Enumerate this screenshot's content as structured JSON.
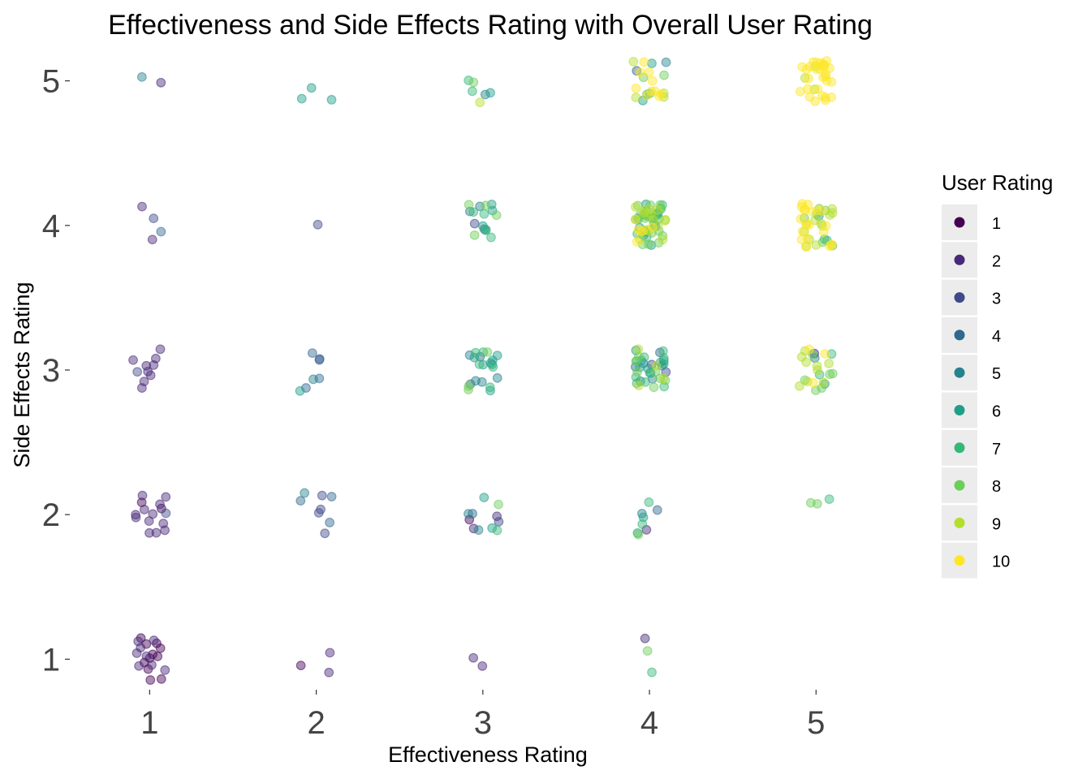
{
  "chart_data": {
    "type": "scatter",
    "title": "Effectiveness and Side Effects Rating with Overall User Rating",
    "xlabel": "Effectiveness Rating",
    "ylabel": "Side Effects Rating",
    "x_ticks": [
      "1",
      "2",
      "3",
      "4",
      "5"
    ],
    "y_ticks": [
      "1",
      "2",
      "3",
      "4",
      "5"
    ],
    "xlim": [
      0.55,
      5.52
    ],
    "ylim": [
      0.8,
      5.2
    ],
    "grid": false,
    "jitter": true,
    "point_alpha": 0.45,
    "legend": {
      "title": "User Rating",
      "position": "right",
      "levels": [
        "1",
        "2",
        "3",
        "4",
        "5",
        "6",
        "7",
        "8",
        "9",
        "10"
      ],
      "colors": [
        "#440154",
        "#482878",
        "#3E4A89",
        "#31688E",
        "#26828E",
        "#1F9E89",
        "#35B779",
        "#6DCD59",
        "#B4DE2C",
        "#FDE725"
      ]
    },
    "series": [
      {
        "x": 1,
        "y": 1,
        "ratings": [
          1,
          1,
          1,
          1,
          1,
          1,
          1,
          1,
          1,
          1,
          1,
          2,
          2,
          2,
          2,
          2,
          2,
          2,
          2
        ]
      },
      {
        "x": 1,
        "y": 2,
        "ratings": [
          1,
          1,
          2,
          2,
          2,
          2,
          2,
          2,
          2,
          2,
          2,
          2,
          2,
          2,
          3
        ]
      },
      {
        "x": 1,
        "y": 3,
        "ratings": [
          2,
          2,
          2,
          2,
          2,
          2,
          2,
          2,
          2,
          3
        ]
      },
      {
        "x": 1,
        "y": 4,
        "ratings": [
          2,
          2,
          3,
          4
        ]
      },
      {
        "x": 1,
        "y": 5,
        "ratings": [
          2,
          5
        ]
      },
      {
        "x": 2,
        "y": 1,
        "ratings": [
          1,
          2,
          2
        ]
      },
      {
        "x": 2,
        "y": 2,
        "ratings": [
          3,
          3,
          3,
          3,
          4,
          4,
          4,
          5
        ]
      },
      {
        "x": 2,
        "y": 3,
        "ratings": [
          3,
          4,
          4,
          4,
          4,
          5,
          6
        ]
      },
      {
        "x": 2,
        "y": 4,
        "ratings": [
          3
        ]
      },
      {
        "x": 2,
        "y": 5,
        "ratings": [
          6,
          6,
          6
        ]
      },
      {
        "x": 3,
        "y": 1,
        "ratings": [
          2,
          2
        ]
      },
      {
        "x": 3,
        "y": 2,
        "ratings": [
          1,
          2,
          2,
          3,
          4,
          5,
          5,
          6,
          6,
          7,
          8
        ]
      },
      {
        "x": 3,
        "y": 3,
        "ratings": [
          4,
          4,
          5,
          5,
          5,
          5,
          6,
          6,
          6,
          6,
          6,
          6,
          6,
          7,
          7,
          7,
          7,
          7,
          8,
          8,
          8
        ]
      },
      {
        "x": 3,
        "y": 4,
        "ratings": [
          3,
          4,
          5,
          5,
          6,
          6,
          6,
          6,
          7,
          7,
          7,
          7,
          8,
          8,
          8,
          8
        ]
      },
      {
        "x": 3,
        "y": 5,
        "ratings": [
          5,
          6,
          7,
          7,
          8,
          9
        ]
      },
      {
        "x": 4,
        "y": 1,
        "ratings": [
          2,
          7,
          8
        ]
      },
      {
        "x": 4,
        "y": 2,
        "ratings": [
          2,
          4,
          5,
          6,
          6,
          7,
          7,
          8
        ]
      },
      {
        "x": 4,
        "y": 3,
        "ratings": [
          3,
          3,
          4,
          4,
          5,
          5,
          5,
          5,
          6,
          6,
          6,
          6,
          6,
          6,
          6,
          6,
          7,
          7,
          7,
          7,
          7,
          7,
          7,
          7,
          7,
          8,
          8,
          8,
          8,
          8,
          8,
          8,
          9,
          9,
          9,
          9
        ]
      },
      {
        "x": 4,
        "y": 4,
        "ratings": [
          5,
          5,
          5,
          6,
          6,
          6,
          6,
          6,
          6,
          7,
          7,
          7,
          7,
          7,
          7,
          7,
          7,
          7,
          7,
          7,
          7,
          8,
          8,
          8,
          8,
          8,
          8,
          8,
          8,
          8,
          8,
          8,
          8,
          8,
          8,
          8,
          8,
          9,
          9,
          9,
          9,
          9,
          9,
          9,
          9,
          9,
          9,
          9,
          9,
          9,
          9,
          10,
          10,
          10,
          10,
          10,
          10
        ]
      },
      {
        "x": 4,
        "y": 5,
        "ratings": [
          4,
          5,
          6,
          6,
          7,
          7,
          8,
          8,
          9,
          9,
          9,
          9,
          10,
          10,
          10,
          10,
          10,
          10,
          10,
          10,
          10,
          10
        ]
      },
      {
        "x": 5,
        "y": 2,
        "ratings": [
          7,
          8,
          8
        ]
      },
      {
        "x": 5,
        "y": 3,
        "ratings": [
          2,
          5,
          6,
          7,
          7,
          8,
          8,
          8,
          8,
          8,
          8,
          9,
          9,
          9,
          9,
          9,
          9,
          9,
          9,
          9,
          10,
          10,
          10
        ]
      },
      {
        "x": 5,
        "y": 4,
        "ratings": [
          6,
          7,
          7,
          7,
          8,
          8,
          8,
          8,
          8,
          9,
          9,
          9,
          9,
          9,
          9,
          9,
          9,
          9,
          9,
          9,
          10,
          10,
          10,
          10,
          10,
          10,
          10,
          10,
          10,
          10,
          10,
          10,
          10,
          10,
          10,
          10,
          10,
          10,
          10,
          10
        ]
      },
      {
        "x": 5,
        "y": 5,
        "ratings": [
          9,
          9,
          9,
          10,
          10,
          10,
          10,
          10,
          10,
          10,
          10,
          10,
          10,
          10,
          10,
          10,
          10,
          10,
          10,
          10,
          10,
          10,
          10,
          10,
          10,
          10,
          10,
          10,
          10,
          10,
          10
        ]
      }
    ]
  }
}
